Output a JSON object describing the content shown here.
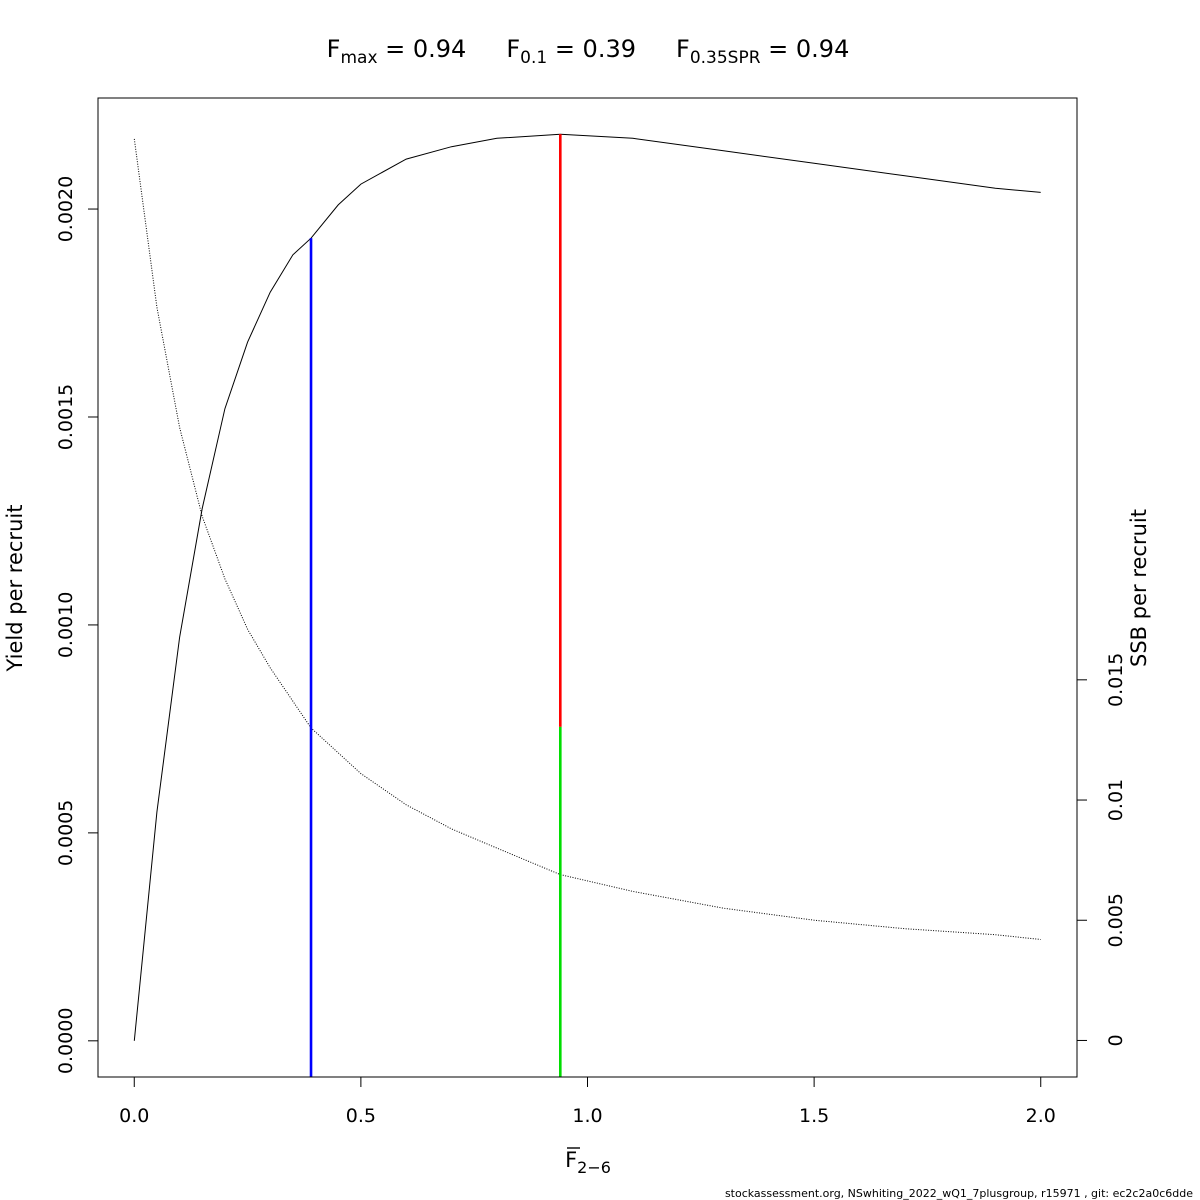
{
  "title": {
    "parts": [
      {
        "base": "F",
        "sub": "max",
        "value": " = 0.94"
      },
      {
        "base": "F",
        "sub": "0.1",
        "value": " = 0.39"
      },
      {
        "base": "F",
        "sub": "0.35SPR",
        "value": " = 0.94"
      }
    ]
  },
  "footer": "stockassessment.org, NSwhiting_2022_wQ1_7plusgroup, r15971 , git: ec2c2a0c6dde",
  "chart_data": {
    "type": "line",
    "xlabel": {
      "base": "F",
      "sub": "2−6"
    },
    "ylabel": "Yield per recruit",
    "y2label": "SSB per recruit",
    "xlim": [
      -0.08,
      2.08
    ],
    "ylim": [
      -8.7e-05,
      0.002267
    ],
    "y2lim": [
      -0.00152,
      0.0392
    ],
    "x_ticks": [
      0,
      0.5,
      1,
      1.5,
      2
    ],
    "x_tick_labels": [
      "0.0",
      "0.5",
      "1.0",
      "1.5",
      "2.0"
    ],
    "y_ticks": [
      0,
      0.0005,
      0.001,
      0.0015,
      0.002
    ],
    "y_tick_labels": [
      "0.0000",
      "0.0005",
      "0.0010",
      "0.0015",
      "0.0020"
    ],
    "y2_ticks": [
      0,
      0.005,
      0.01,
      0.015
    ],
    "y2_tick_labels": [
      "0",
      "0.005",
      "0.01",
      "0.015"
    ],
    "series": [
      {
        "axis": "left",
        "line_style": "solid",
        "color": "#000000",
        "x": [
          0,
          0.05,
          0.1,
          0.15,
          0.2,
          0.25,
          0.3,
          0.35,
          0.39,
          0.45,
          0.5,
          0.6,
          0.7,
          0.8,
          0.94,
          1.1,
          1.3,
          1.5,
          1.7,
          1.9,
          2.0
        ],
        "y": [
          0,
          0.00055,
          0.00097,
          0.00128,
          0.00152,
          0.00168,
          0.0018,
          0.00189,
          0.00193,
          0.00201,
          0.00206,
          0.00212,
          0.00215,
          0.00217,
          0.00218,
          0.00217,
          0.00214,
          0.00211,
          0.00208,
          0.00205,
          0.00204
        ]
      },
      {
        "axis": "right",
        "line_style": "dotted",
        "color": "#000000",
        "x": [
          0,
          0.05,
          0.1,
          0.15,
          0.2,
          0.25,
          0.3,
          0.39,
          0.5,
          0.6,
          0.7,
          0.8,
          0.94,
          1.1,
          1.3,
          1.5,
          1.7,
          1.9,
          2.0
        ],
        "y": [
          0.0375,
          0.0305,
          0.0255,
          0.0218,
          0.0192,
          0.0171,
          0.0155,
          0.013,
          0.0111,
          0.0098,
          0.0088,
          0.008,
          0.0069,
          0.0062,
          0.0055,
          0.005,
          0.00465,
          0.0044,
          0.0042
        ]
      }
    ],
    "reference_lines": [
      {
        "name": "F0.1",
        "x": 0.39,
        "axis": "left",
        "from": -8.7e-05,
        "to": 0.00193,
        "color": "#0000ff"
      },
      {
        "name": "Fmax",
        "x": 0.94,
        "axis": "left",
        "from": 0.000755,
        "to": 0.00218,
        "color": "#ff0000"
      },
      {
        "name": "F0.35SPR",
        "x": 0.94,
        "axis": "left",
        "from": -8.7e-05,
        "to": 0.000755,
        "color": "#00dd00"
      }
    ]
  }
}
